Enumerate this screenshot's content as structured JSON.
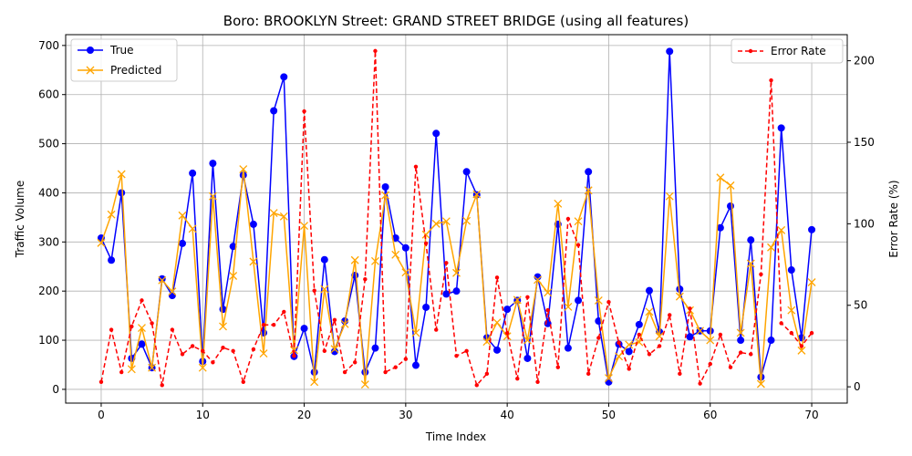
{
  "chart_data": {
    "type": "line",
    "title": "Boro: BROOKLYN Street: GRAND STREET BRIDGE (using all features)",
    "xlabel": "Time Index",
    "ylabel": "Traffic Volume",
    "y2label": "Error Rate (%)",
    "xlim": [
      -3.5,
      73.5
    ],
    "ylim": [
      -28,
      722
    ],
    "y2lim": [
      -10,
      216
    ],
    "x_ticks": [
      0,
      10,
      20,
      30,
      40,
      50,
      60,
      70
    ],
    "y_ticks": [
      0,
      100,
      200,
      300,
      400,
      500,
      600,
      700
    ],
    "y2_ticks": [
      0,
      50,
      100,
      150,
      200
    ],
    "grid": true,
    "legend_left_position": "upper-left",
    "legend_right_position": "upper-right",
    "x": [
      0,
      1,
      2,
      3,
      4,
      5,
      6,
      7,
      8,
      9,
      10,
      11,
      12,
      13,
      14,
      15,
      16,
      17,
      18,
      19,
      20,
      21,
      22,
      23,
      24,
      25,
      26,
      27,
      28,
      29,
      30,
      31,
      32,
      33,
      34,
      35,
      36,
      37,
      38,
      39,
      40,
      41,
      42,
      43,
      44,
      45,
      46,
      47,
      48,
      49,
      50,
      51,
      52,
      53,
      54,
      55,
      56,
      57,
      58,
      59,
      60,
      61,
      62,
      63,
      64,
      65,
      66,
      67,
      68,
      69,
      70
    ],
    "series": [
      {
        "name": "True",
        "axis": "left",
        "color": "#0000ff",
        "style": "solid",
        "marker": "circle",
        "values": [
          308,
          263,
          400,
          63,
          92,
          44,
          225,
          191,
          297,
          440,
          57,
          460,
          163,
          291,
          436,
          336,
          115,
          567,
          636,
          67,
          124,
          35,
          264,
          77,
          139,
          232,
          35,
          84,
          412,
          308,
          288,
          49,
          167,
          521,
          194,
          200,
          443,
          396,
          105,
          80,
          163,
          181,
          63,
          229,
          134,
          336,
          84,
          181,
          443,
          139,
          15,
          92,
          77,
          132,
          201,
          117,
          688,
          204,
          107,
          119,
          119,
          329,
          373,
          100,
          304,
          25,
          100,
          532,
          243,
          105,
          325
        ]
      },
      {
        "name": "Predicted",
        "axis": "left",
        "color": "#ffa500",
        "style": "solid",
        "marker": "x",
        "values": [
          298,
          356,
          438,
          41,
          125,
          44,
          222,
          199,
          354,
          327,
          44,
          393,
          128,
          231,
          448,
          260,
          73,
          359,
          352,
          80,
          333,
          15,
          204,
          82,
          133,
          263,
          10,
          261,
          395,
          274,
          238,
          115,
          315,
          337,
          342,
          237,
          343,
          397,
          97,
          136,
          108,
          182,
          100,
          223,
          197,
          378,
          168,
          342,
          405,
          181,
          23,
          67,
          91,
          96,
          158,
          108,
          393,
          189,
          161,
          119,
          100,
          431,
          415,
          115,
          256,
          11,
          289,
          324,
          161,
          79,
          218
        ]
      },
      {
        "name": "Error Rate",
        "axis": "right",
        "color": "#ff0000",
        "style": "dashed",
        "marker": "dot",
        "values": [
          3,
          35,
          9,
          37,
          53,
          39,
          1,
          35,
          20,
          25,
          22,
          15,
          24,
          22,
          3,
          23,
          38,
          38,
          46,
          19,
          169,
          59,
          22,
          41,
          9,
          15,
          66,
          206,
          9,
          12,
          17,
          135,
          88,
          35,
          76,
          19,
          22,
          1,
          8,
          67,
          33,
          5,
          55,
          3,
          47,
          12,
          103,
          87,
          8,
          30,
          52,
          27,
          11,
          32,
          20,
          25,
          44,
          8,
          48,
          2,
          14,
          32,
          12,
          21,
          20,
          69,
          188,
          39,
          33,
          25,
          33
        ]
      }
    ]
  }
}
